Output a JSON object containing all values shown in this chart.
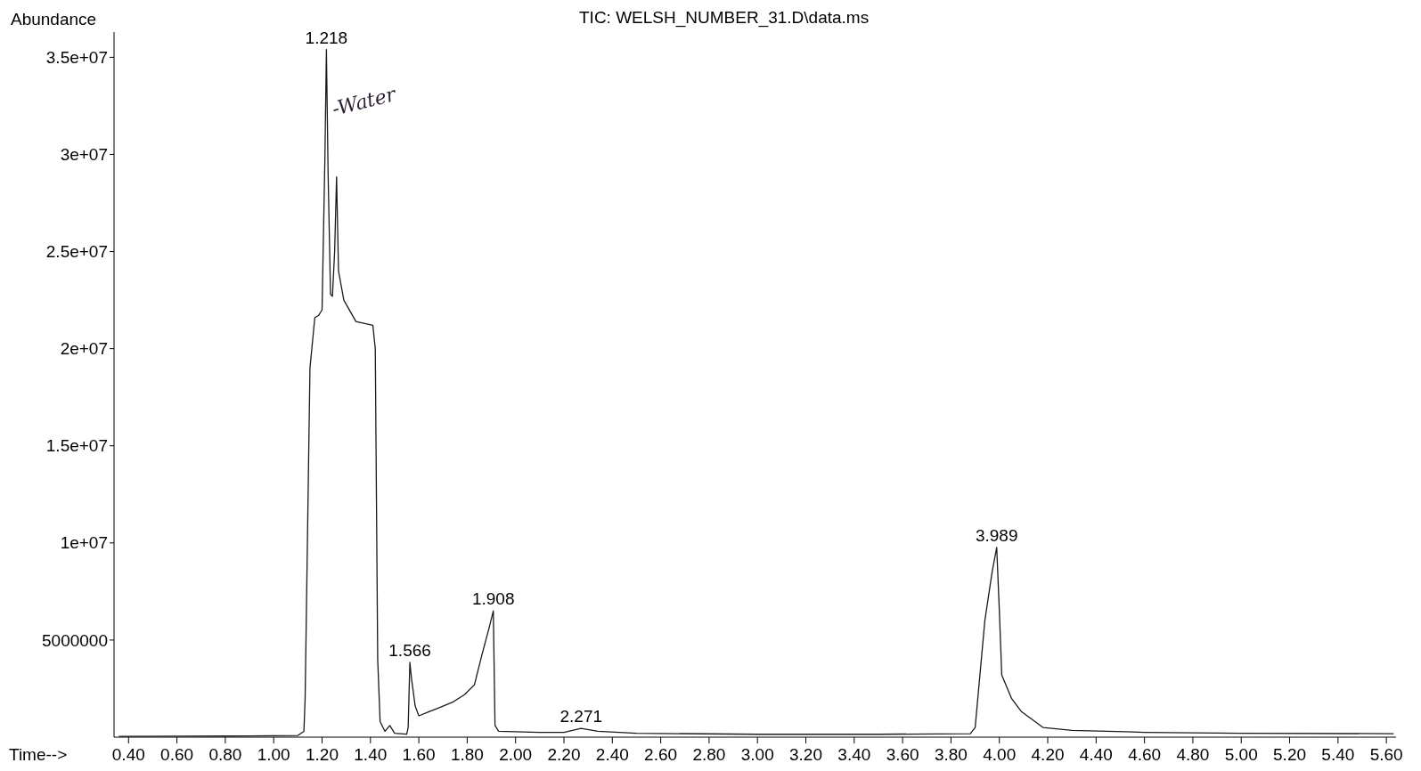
{
  "chart_data": {
    "type": "line",
    "title": "TIC: WELSH_NUMBER_31.D\\data.ms",
    "xlabel": "Time-->",
    "ylabel": "Abundance",
    "x": [
      0.36,
      0.6,
      0.9,
      1.1,
      1.125,
      1.13,
      1.15,
      1.17,
      1.185,
      1.2,
      1.212,
      1.218,
      1.225,
      1.235,
      1.243,
      1.252,
      1.26,
      1.268,
      1.29,
      1.34,
      1.41,
      1.42,
      1.43,
      1.44,
      1.46,
      1.48,
      1.5,
      1.55,
      1.556,
      1.563,
      1.57,
      1.585,
      1.6,
      1.64,
      1.68,
      1.74,
      1.79,
      1.83,
      1.86,
      1.89,
      1.908,
      1.915,
      1.93,
      2.1,
      2.2,
      2.271,
      2.34,
      2.5,
      3.0,
      3.5,
      3.88,
      3.9,
      3.94,
      3.97,
      3.989,
      4.0,
      4.01,
      4.05,
      4.09,
      4.18,
      4.3,
      4.6,
      5.0,
      5.63
    ],
    "series": [
      {
        "color": "#1a1a1a",
        "values": [
          40000,
          50000,
          60000,
          90000,
          300000,
          2000000,
          19000000,
          21600000,
          21700000,
          22000000,
          30000000,
          35400000,
          29000000,
          22800000,
          22700000,
          25000000,
          28850000,
          24000000,
          22500000,
          21400000,
          21200000,
          20000000,
          4000000,
          800000,
          300000,
          600000,
          200000,
          150000,
          500000,
          3850000,
          3000000,
          1600000,
          1100000,
          1300000,
          1500000,
          1800000,
          2200000,
          2700000,
          4200000,
          5600000,
          6500000,
          600000,
          300000,
          250000,
          250000,
          450000,
          300000,
          200000,
          150000,
          150000,
          180000,
          500000,
          6000000,
          8500000,
          9770000,
          6500000,
          3200000,
          2000000,
          1330000,
          500000,
          350000,
          250000,
          200000,
          180000
        ]
      }
    ],
    "xlim": [
      0.34,
      5.64
    ],
    "ylim": [
      0,
      36300000
    ],
    "xticks": [
      {
        "value": 0.4,
        "label": "0.40"
      },
      {
        "value": 0.6,
        "label": "0.60"
      },
      {
        "value": 0.8,
        "label": "0.80"
      },
      {
        "value": 1,
        "label": "1.00"
      },
      {
        "value": 1.2,
        "label": "1.20"
      },
      {
        "value": 1.4,
        "label": "1.40"
      },
      {
        "value": 1.6,
        "label": "1.60"
      },
      {
        "value": 1.8,
        "label": "1.80"
      },
      {
        "value": 2,
        "label": "2.00"
      },
      {
        "value": 2.2,
        "label": "2.20"
      },
      {
        "value": 2.4,
        "label": "2.40"
      },
      {
        "value": 2.6,
        "label": "2.60"
      },
      {
        "value": 2.8,
        "label": "2.80"
      },
      {
        "value": 3,
        "label": "3.00"
      },
      {
        "value": 3.2,
        "label": "3.20"
      },
      {
        "value": 3.4,
        "label": "3.40"
      },
      {
        "value": 3.6,
        "label": "3.60"
      },
      {
        "value": 3.8,
        "label": "3.80"
      },
      {
        "value": 4,
        "label": "4.00"
      },
      {
        "value": 4.2,
        "label": "4.20"
      },
      {
        "value": 4.4,
        "label": "4.40"
      },
      {
        "value": 4.6,
        "label": "4.60"
      },
      {
        "value": 4.8,
        "label": "4.80"
      },
      {
        "value": 5,
        "label": "5.00"
      },
      {
        "value": 5.2,
        "label": "5.20"
      },
      {
        "value": 5.4,
        "label": "5.40"
      },
      {
        "value": 5.6,
        "label": "5.60"
      }
    ],
    "yticks": [
      5000000,
      {
        "value": 10000000,
        "label": "1e+07"
      },
      {
        "value": 15000000,
        "label": "1.5e+07"
      },
      {
        "value": 20000000,
        "label": "2e+07"
      },
      {
        "value": 25000000,
        "label": "2.5e+07"
      },
      {
        "value": 30000000,
        "label": "3e+07"
      },
      {
        "value": 35000000,
        "label": "3.5e+07"
      }
    ],
    "annotations": [
      {
        "text": "1.218",
        "x": 1.218,
        "y": 35400000
      },
      {
        "text": "1.566",
        "x": 1.563,
        "y": 3850000
      },
      {
        "text": "1.908",
        "x": 1.908,
        "y": 6500000
      },
      {
        "text": "2.271",
        "x": 2.271,
        "y": 450000
      },
      {
        "text": "3.989",
        "x": 3.989,
        "y": 9770000
      },
      "-Water"
    ],
    "grid": false,
    "marker": "none",
    "line_style": "solid"
  }
}
